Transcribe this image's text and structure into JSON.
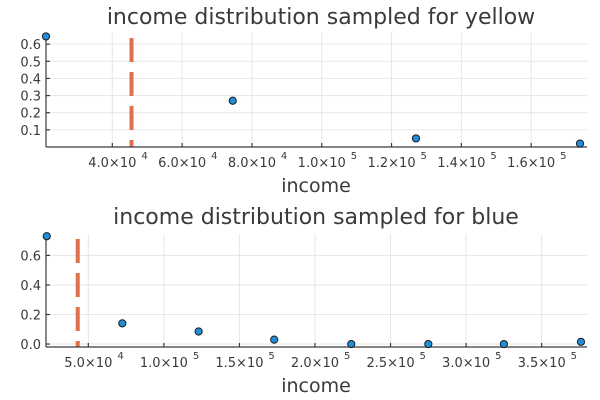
{
  "chart_data": [
    {
      "type": "scatter",
      "title": "income distribution sampled for yellow",
      "xlabel": "income",
      "ylabel": "",
      "grid": true,
      "legend": "none",
      "xlim": [
        21000,
        176000
      ],
      "ylim": [
        0,
        0.665
      ],
      "x_ticks": [
        40000,
        60000,
        80000,
        100000,
        120000,
        140000,
        160000
      ],
      "x_tick_labels": [
        {
          "base": "4.0×10",
          "exp": "4"
        },
        {
          "base": "6.0×10",
          "exp": "4"
        },
        {
          "base": "8.0×10",
          "exp": "4"
        },
        {
          "base": "1.0×10",
          "exp": "5"
        },
        {
          "base": "1.2×10",
          "exp": "5"
        },
        {
          "base": "1.4×10",
          "exp": "5"
        },
        {
          "base": "1.6×10",
          "exp": "5"
        }
      ],
      "y_ticks": [
        0.1,
        0.2,
        0.3,
        0.4,
        0.5,
        0.6
      ],
      "y_tick_labels": [
        "0.1",
        "0.2",
        "0.3",
        "0.4",
        "0.5",
        "0.6"
      ],
      "reference_line_x": 45500,
      "series": [
        {
          "x": [
            21000,
            74500,
            127000,
            174000
          ],
          "y": [
            0.645,
            0.27,
            0.05,
            0.02
          ],
          "color": "#1f8fdd"
        }
      ],
      "reference_color": "#e1704d"
    },
    {
      "type": "scatter",
      "title": "income distribution sampled for blue",
      "xlabel": "income",
      "ylabel": "",
      "grid": true,
      "legend": "none",
      "xlim": [
        22000,
        380000
      ],
      "ylim": [
        -0.02,
        0.745
      ],
      "x_ticks": [
        50000,
        100000,
        150000,
        200000,
        250000,
        300000,
        350000
      ],
      "x_tick_labels": [
        {
          "base": "5.0×10",
          "exp": "4"
        },
        {
          "base": "1.0×10",
          "exp": "5"
        },
        {
          "base": "1.5×10",
          "exp": "5"
        },
        {
          "base": "2.0×10",
          "exp": "5"
        },
        {
          "base": "2.5×10",
          "exp": "5"
        },
        {
          "base": "3.0×10",
          "exp": "5"
        },
        {
          "base": "3.5×10",
          "exp": "5"
        }
      ],
      "y_ticks": [
        0.0,
        0.2,
        0.4,
        0.6
      ],
      "y_tick_labels": [
        "0.0",
        "0.2",
        "0.4",
        "0.6"
      ],
      "reference_line_x": 43000,
      "series": [
        {
          "x": [
            22500,
            72500,
            123000,
            173000,
            224000,
            275000,
            325000,
            376000
          ],
          "y": [
            0.73,
            0.14,
            0.085,
            0.03,
            0.0,
            0.0,
            0.0,
            0.015
          ],
          "color": "#1f8fdd"
        }
      ],
      "reference_color": "#e1704d"
    }
  ]
}
